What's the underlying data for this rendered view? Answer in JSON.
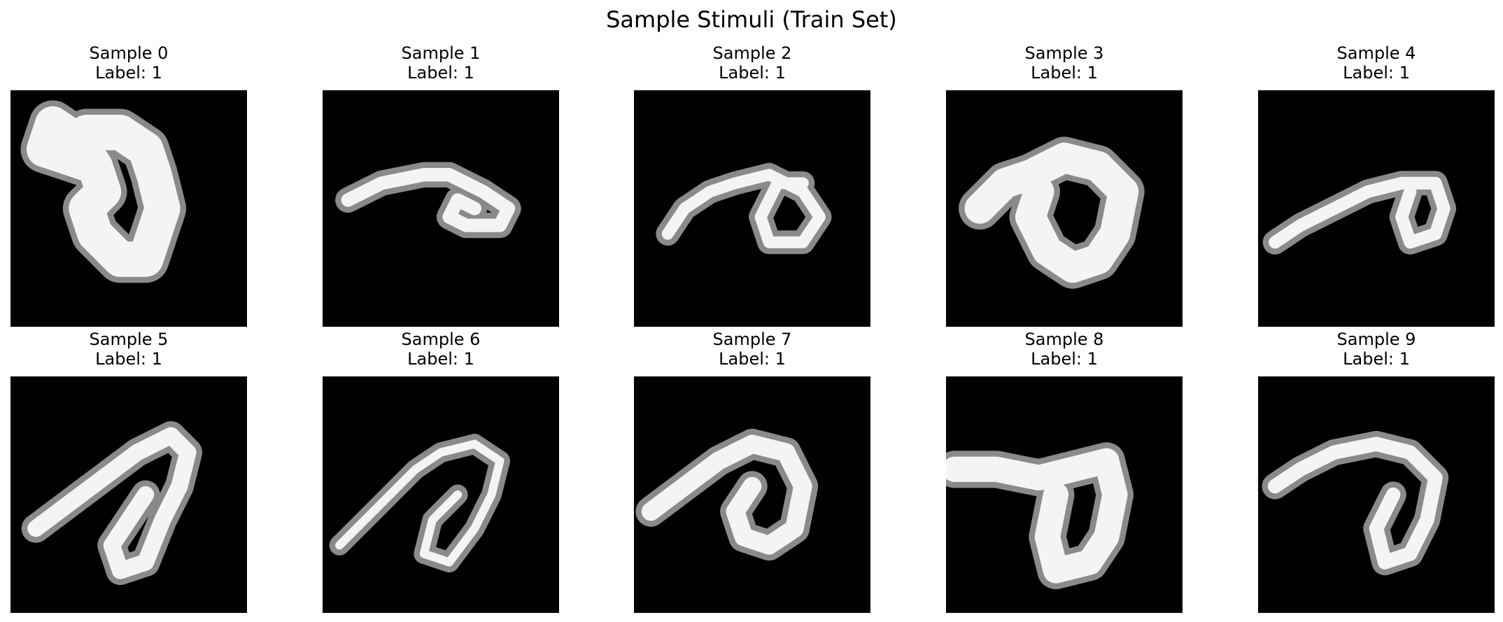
{
  "figure": {
    "suptitle": "Sample Stimuli (Train Set)"
  },
  "chart_data": {
    "type": "heatmap",
    "colormap": "gray",
    "grid": false,
    "axes_visible": false,
    "title": "Sample Stimuli (Train Set)",
    "grid_layout": {
      "rows": 2,
      "cols": 5
    },
    "image_size": [
      28,
      28
    ],
    "samples": [
      {
        "index": 0,
        "title": "Sample 0",
        "label_text": "Label: 1",
        "label": 1,
        "strokes": [
          [
            [
              10,
              9
            ],
            [
              8,
              6
            ],
            [
              5,
              4
            ],
            [
              4,
              7
            ],
            [
              7,
              8
            ],
            [
              10,
              9
            ],
            [
              11,
              12
            ],
            [
              9,
              14
            ],
            [
              10,
              17
            ],
            [
              13,
              20
            ],
            [
              16,
              20
            ],
            [
              17,
              17
            ],
            [
              18,
              14
            ],
            [
              17,
              10
            ],
            [
              16,
              7
            ],
            [
              13,
              5
            ],
            [
              9,
              5
            ]
          ]
        ],
        "width": 4.2
      },
      {
        "index": 1,
        "title": "Sample 1",
        "label_text": "Label: 1",
        "label": 1,
        "strokes": [
          [
            [
              3,
              13
            ],
            [
              7,
              11
            ],
            [
              12,
              10
            ],
            [
              15,
              10
            ],
            [
              19,
              12
            ],
            [
              22,
              14
            ],
            [
              21,
              16
            ],
            [
              17,
              16
            ],
            [
              15,
              15
            ],
            [
              16,
              13
            ],
            [
              18,
              14
            ]
          ]
        ],
        "width": 1.6
      },
      {
        "index": 2,
        "title": "Sample 2",
        "label_text": "Label: 1",
        "label": 1,
        "strokes": [
          [
            [
              4,
              17
            ],
            [
              6,
              14
            ],
            [
              9,
              12
            ],
            [
              12,
              11
            ],
            [
              16,
              10
            ],
            [
              20,
              12
            ],
            [
              22,
              15
            ],
            [
              20,
              18
            ],
            [
              16,
              18
            ],
            [
              15,
              15
            ],
            [
              17,
              11
            ],
            [
              20,
              11
            ]
          ]
        ],
        "width": 1.4
      },
      {
        "index": 3,
        "title": "Sample 3",
        "label_text": "Label: 1",
        "label": 1,
        "strokes": [
          [
            [
              4,
              14
            ],
            [
              7,
              11
            ],
            [
              10,
              10
            ],
            [
              14,
              8
            ],
            [
              18,
              9
            ],
            [
              21,
              12
            ],
            [
              20,
              17
            ],
            [
              18,
              20
            ],
            [
              15,
              21
            ],
            [
              12,
              19
            ],
            [
              10,
              15
            ],
            [
              11,
              12
            ]
          ]
        ],
        "width": 3.6
      },
      {
        "index": 4,
        "title": "Sample 4",
        "label_text": "Label: 1",
        "label": 1,
        "strokes": [
          [
            [
              2,
              18
            ],
            [
              5,
              16
            ],
            [
              9,
              14
            ],
            [
              13,
              12
            ],
            [
              17,
              11
            ],
            [
              21,
              11
            ],
            [
              22,
              14
            ],
            [
              21,
              17
            ],
            [
              18,
              18
            ],
            [
              17,
              15
            ],
            [
              18,
              12
            ]
          ]
        ],
        "width": 1.5
      },
      {
        "index": 5,
        "title": "Sample 5",
        "label_text": "Label: 1",
        "label": 1,
        "strokes": [
          [
            [
              3,
              18
            ],
            [
              7,
              15
            ],
            [
              11,
              12
            ],
            [
              15,
              9
            ],
            [
              19,
              7
            ],
            [
              21,
              9
            ],
            [
              20,
              13
            ],
            [
              18,
              17
            ],
            [
              16,
              22
            ],
            [
              13,
              23
            ],
            [
              12,
              20
            ],
            [
              14,
              17
            ],
            [
              16,
              14
            ]
          ]
        ],
        "width": 2.0
      },
      {
        "index": 6,
        "title": "Sample 6",
        "label_text": "Label: 1",
        "label": 1,
        "strokes": [
          [
            [
              2,
              20
            ],
            [
              5,
              17
            ],
            [
              8,
              14
            ],
            [
              11,
              11
            ],
            [
              14,
              9
            ],
            [
              18,
              8
            ],
            [
              21,
              10
            ],
            [
              20,
              14
            ],
            [
              18,
              18
            ],
            [
              15,
              22
            ],
            [
              12,
              21
            ],
            [
              13,
              17
            ],
            [
              16,
              14
            ]
          ]
        ],
        "width": 1.0
      },
      {
        "index": 7,
        "title": "Sample 7",
        "label_text": "Label: 1",
        "label": 1,
        "strokes": [
          [
            [
              2,
              16
            ],
            [
              6,
              13
            ],
            [
              10,
              10
            ],
            [
              14,
              8
            ],
            [
              18,
              9
            ],
            [
              20,
              13
            ],
            [
              19,
              18
            ],
            [
              16,
              20
            ],
            [
              13,
              19
            ],
            [
              12,
              16
            ],
            [
              14,
              13
            ]
          ]
        ],
        "width": 2.2
      },
      {
        "index": 8,
        "title": "Sample 8",
        "label_text": "Label: 1",
        "label": 1,
        "strokes": [
          [
            [
              1,
              11
            ],
            [
              6,
              11
            ],
            [
              11,
              12
            ],
            [
              15,
              11
            ],
            [
              19,
              10
            ],
            [
              20,
              14
            ],
            [
              19,
              19
            ],
            [
              17,
              22
            ],
            [
              13,
              23
            ],
            [
              12,
              19
            ],
            [
              13,
              14
            ]
          ]
        ],
        "width": 3.0
      },
      {
        "index": 9,
        "title": "Sample 9",
        "label_text": "Label: 1",
        "label": 1,
        "strokes": [
          [
            [
              2,
              13
            ],
            [
              5,
              11
            ],
            [
              9,
              9
            ],
            [
              14,
              8
            ],
            [
              18,
              9
            ],
            [
              21,
              12
            ],
            [
              20,
              17
            ],
            [
              18,
              21
            ],
            [
              15,
              22
            ],
            [
              14,
              18
            ],
            [
              16,
              14
            ]
          ]
        ],
        "width": 1.7
      }
    ]
  }
}
